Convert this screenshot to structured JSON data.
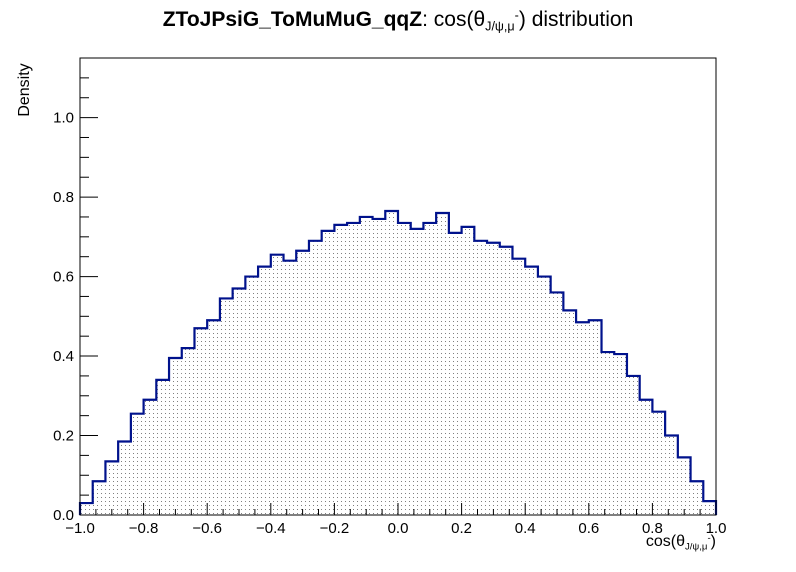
{
  "chart_data": {
    "type": "bar",
    "title": {
      "main": "ZToJPsiG_ToMuMuG_qqZ",
      "sep": ":",
      "rest_prefix": "cos(θ",
      "sub": "J/ψ,μ",
      "sup": "-",
      "rest_suffix": ") distribution"
    },
    "xlabel": {
      "prefix": "cos(θ",
      "sub": "J/ψ,μ",
      "sup": "-",
      "suffix": ")"
    },
    "ylabel": "Density",
    "xlim": [
      -1.0,
      1.0
    ],
    "ylim": [
      0.0,
      1.15
    ],
    "x_ticks": [
      "−1.0",
      "−0.8",
      "−0.6",
      "−0.4",
      "−0.2",
      "0.0",
      "0.2",
      "0.4",
      "0.6",
      "0.8",
      "1.0"
    ],
    "y_ticks": [
      "0.0",
      "0.2",
      "0.4",
      "0.6",
      "0.8",
      "1.0"
    ],
    "bin_edges_start": -1.0,
    "bin_width": 0.04,
    "values": [
      0.03,
      0.085,
      0.135,
      0.185,
      0.255,
      0.29,
      0.34,
      0.395,
      0.42,
      0.47,
      0.49,
      0.545,
      0.57,
      0.6,
      0.625,
      0.655,
      0.64,
      0.665,
      0.69,
      0.715,
      0.73,
      0.735,
      0.75,
      0.745,
      0.765,
      0.735,
      0.72,
      0.735,
      0.76,
      0.71,
      0.725,
      0.69,
      0.685,
      0.675,
      0.645,
      0.625,
      0.6,
      0.56,
      0.515,
      0.485,
      0.49,
      0.41,
      0.405,
      0.35,
      0.29,
      0.26,
      0.2,
      0.145,
      0.085,
      0.035
    ],
    "colors": {
      "line": "#00128c",
      "fill_dots": "#7f7f7f",
      "frame": "#000000"
    },
    "grid": false,
    "legend": "none"
  }
}
